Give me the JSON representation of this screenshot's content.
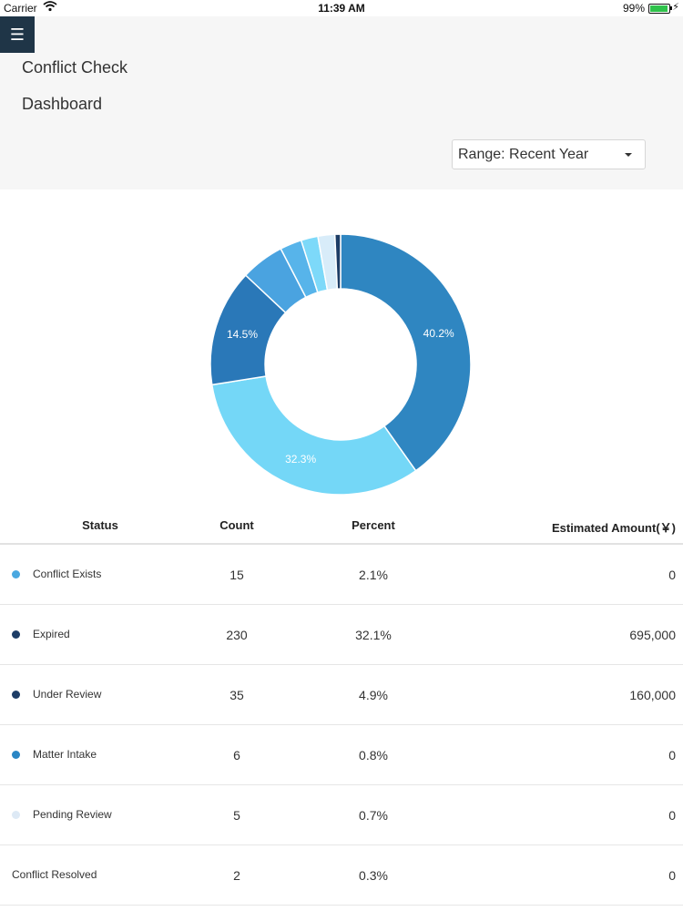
{
  "status_bar": {
    "carrier": "Carrier",
    "time": "11:39 AM",
    "battery": "99%"
  },
  "header": {
    "menu_icon": "☰",
    "title": "Conflict Check",
    "subtitle": "Dashboard",
    "range_select": "Range: Recent Year"
  },
  "chart_data": {
    "type": "pie",
    "values": [
      40.2,
      32.3,
      14.5,
      5.4,
      2.7,
      2.1,
      2.1,
      0.7
    ],
    "colors": [
      "#2f86c1",
      "#74d7f7",
      "#2a78b8",
      "#4aa3e0",
      "#57b4ea",
      "#7dd9f9",
      "#d8ecf9",
      "#1d3d66"
    ],
    "labels": [
      "40.2%",
      "32.3%",
      "14.5%",
      "",
      "",
      "",
      "",
      ""
    ],
    "start_angle_deg": 0,
    "hole_ratio": 0.58
  },
  "table": {
    "headers": {
      "status": "Status",
      "count": "Count",
      "percent": "Percent",
      "amount": "Estimated Amount(￥)"
    },
    "rows": [
      {
        "status": "Conflict Exists",
        "count": "15",
        "percent": "2.1%",
        "amount": "0",
        "color": "#4aa8e0"
      },
      {
        "status": "Expired",
        "count": "230",
        "percent": "32.1%",
        "amount": "695,000",
        "color": "#1d3d66"
      },
      {
        "status": "Under Review",
        "count": "35",
        "percent": "4.9%",
        "amount": "160,000",
        "color": "#1d3d66"
      },
      {
        "status": "Matter Intake",
        "count": "6",
        "percent": "0.8%",
        "amount": "0",
        "color": "#2a86c4"
      },
      {
        "status": "Pending Review",
        "count": "5",
        "percent": "0.7%",
        "amount": "0",
        "color": "#dde9f5"
      },
      {
        "status": "Conflict Resolved",
        "count": "2",
        "percent": "0.3%",
        "amount": "0",
        "color": ""
      }
    ]
  }
}
